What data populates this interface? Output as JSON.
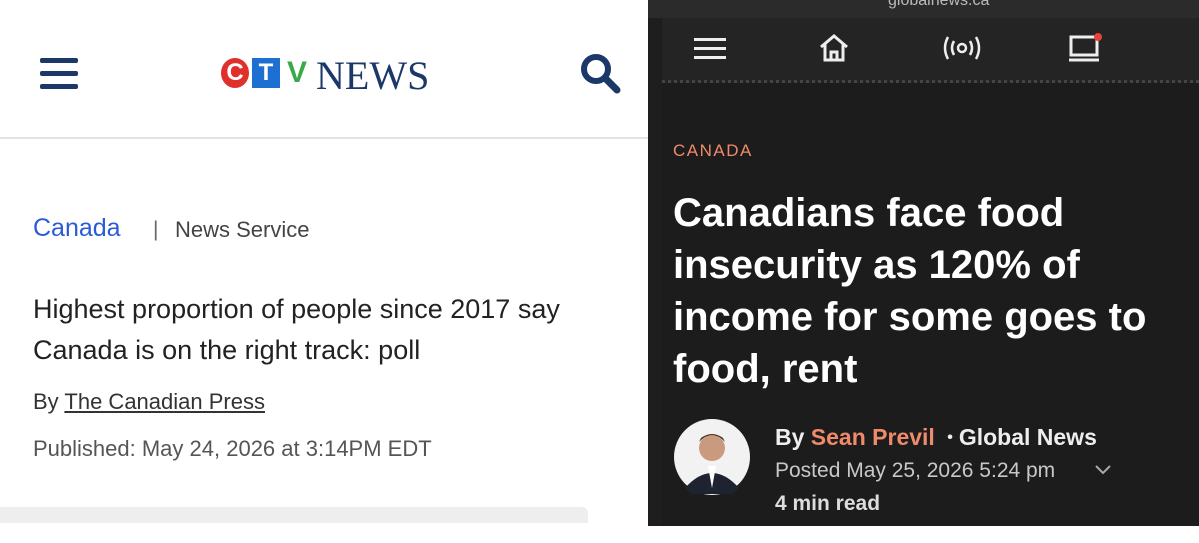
{
  "ctv": {
    "logo": {
      "c": "C",
      "t": "T",
      "v": "V",
      "news": "NEWS"
    },
    "section": "Canada",
    "separator": "|",
    "service": "News Service",
    "headline": "Highest proportion of people since 2017 say Canada is on the right track: poll",
    "by": "By",
    "author": "The Canadian Press",
    "published": "Published: May 24, 2026 at 3:14PM EDT"
  },
  "global": {
    "url": "globalnews.ca",
    "section": "CANADA",
    "headline": "Canadians face food insecurity as 120% of income for some goes to food, rent",
    "by": "By",
    "author": "Sean Previl",
    "dot": "•",
    "outlet": "Global News",
    "posted": "Posted May 25, 2026 5:24 pm",
    "read_time": "4 min read"
  }
}
